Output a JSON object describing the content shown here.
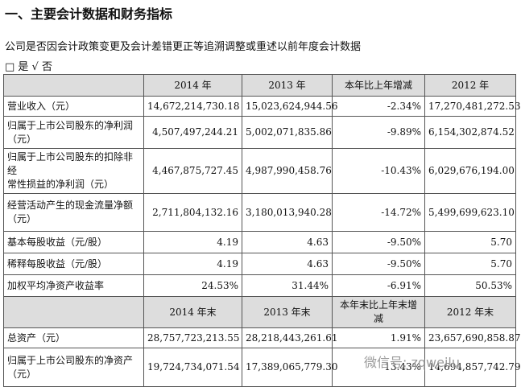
{
  "header": {
    "title": "一、主要会计数据和财务指标"
  },
  "notice": "公司是否因会计政策变更及会计差错更正等追溯调整或重述以前年度会计数据",
  "options": "□ 是 √ 否",
  "table": {
    "header": [
      "",
      "2014 年",
      "2013 年",
      "本年比上年增减",
      "2012 年"
    ],
    "rows": [
      [
        "营业收入（元）",
        "14,672,214,730.18",
        "15,023,624,944.56",
        "-2.34%",
        "17,270,481,272.53"
      ],
      [
        "归属于上市公司股东的净利润\n（元）",
        "4,507,497,244.21",
        "5,002,071,835.86",
        "-9.89%",
        "6,154,302,874.52"
      ],
      [
        "归属于上市公司股东的扣除非经\n常性损益的净利润（元）",
        "4,467,875,727.45",
        "4,987,990,458.76",
        "-10.43%",
        "6,029,676,194.00"
      ],
      [
        "经营活动产生的现金流量净额\n（元）",
        "2,711,804,132.16",
        "3,180,013,940.28",
        "-14.72%",
        "5,499,699,623.10"
      ],
      [
        "基本每股收益（元/股）",
        "4.19",
        "4.63",
        "-9.50%",
        "5.70"
      ],
      [
        "稀释每股收益（元/股）",
        "4.19",
        "4.63",
        "-9.50%",
        "5.70"
      ],
      [
        "加权平均净资产收益率",
        "24.53%",
        "31.44%",
        "-6.91%",
        "50.53%"
      ]
    ],
    "header2": [
      "",
      "2014 年末",
      "2013 年末",
      "本年末比上年末增减",
      "2012 年末"
    ],
    "rows2": [
      [
        "总资产（元）",
        "28,757,723,213.55",
        "28,218,443,261.61",
        "1.91%",
        "23,657,690,858.87"
      ],
      [
        "归属于上市公司股东的净资产\n（元）",
        "19,724,734,071.54",
        "17,389,065,779.30",
        "13.43%",
        "14,694,857,742.79"
      ]
    ]
  },
  "watermark": "微信号: zqweilu"
}
